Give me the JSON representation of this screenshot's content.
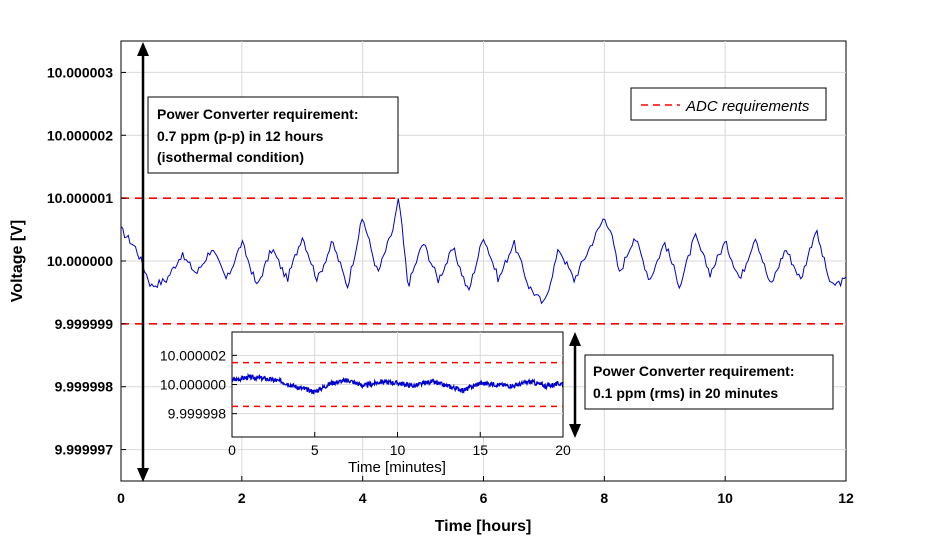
{
  "chart_data": [
    {
      "type": "line",
      "xlabel": "Time [hours]",
      "ylabel": "Voltage [V]",
      "xlim": [
        0,
        12
      ],
      "ylim": [
        9.9999965,
        10.0000035
      ],
      "x_ticks": [
        0,
        2,
        4,
        6,
        8,
        10,
        12
      ],
      "x_tick_labels": [
        "0",
        "2",
        "4",
        "6",
        "8",
        "10",
        "12"
      ],
      "y_ticks": [
        9.999997,
        9.999998,
        9.999999,
        10.0,
        10.000001,
        10.000002,
        10.000003
      ],
      "y_tick_labels": [
        "9.999997",
        "9.999998",
        "9.999999",
        "10.000000",
        "10.000001",
        "10.000002",
        "10.000003"
      ],
      "grid": true,
      "legend_position": "top-right",
      "series": [
        {
          "color": "#0000cc",
          "x": [
            0,
            0.25,
            0.5,
            0.75,
            1,
            1.25,
            1.5,
            1.75,
            2,
            2.25,
            2.5,
            2.75,
            3,
            3.25,
            3.5,
            3.75,
            4,
            4.25,
            4.5,
            4.6,
            4.75,
            5,
            5.25,
            5.5,
            5.75,
            6,
            6.25,
            6.5,
            6.75,
            7,
            7.25,
            7.5,
            7.75,
            8,
            8.1,
            8.25,
            8.5,
            8.75,
            9,
            9.25,
            9.5,
            9.75,
            10,
            10.25,
            10.5,
            10.75,
            11,
            11.25,
            11.5,
            11.75,
            12
          ],
          "values": [
            10.0000005,
            10.0000002,
            9.9999996,
            9.9999997,
            10.0000001,
            9.9999998,
            10.0000002,
            9.9999997,
            10.0000003,
            9.9999996,
            10.0000002,
            9.9999997,
            10.0000004,
            9.9999997,
            10.0000003,
            9.9999996,
            10.0000007,
            9.9999998,
            10.0000005,
            10.000001,
            9.9999996,
            10.0000003,
            9.9999997,
            10.0000002,
            9.9999995,
            10.0000004,
            9.9999997,
            10.0000003,
            9.9999996,
            9.9999993,
            10.0000002,
            9.9999997,
            10.0000002,
            10.0000007,
            10.0000005,
            9.9999998,
            10.0000004,
            9.9999997,
            10.0000003,
            9.9999996,
            10.0000004,
            9.9999998,
            10.0000003,
            9.9999997,
            10.0000004,
            9.9999996,
            10.0000002,
            9.9999997,
            10.0000005,
            9.9999996,
            9.9999997
          ]
        }
      ],
      "reference_lines": [
        {
          "name": "ADC requirements",
          "y": 10.000001,
          "color": "#ff0000",
          "style": "dashed"
        },
        {
          "name": "ADC requirements",
          "y": 9.999999,
          "color": "#ff0000",
          "style": "dashed"
        }
      ],
      "legend": [
        "ADC requirements"
      ],
      "annotations": {
        "box1_lines": [
          "Power Converter requirement:",
          "0.7 ppm (p-p) in 12 hours",
          "(isothermal condition)"
        ],
        "box2_lines": [
          "Power Converter requirement:",
          "0.1 ppm (rms) in 20 minutes"
        ]
      }
    },
    {
      "type": "line",
      "xlabel": "Time [minutes]",
      "xlim": [
        0,
        20
      ],
      "ylim": [
        9.9999964,
        10.0000036
      ],
      "x_ticks": [
        0,
        5,
        10,
        15,
        20
      ],
      "x_tick_labels": [
        "0",
        "5",
        "10",
        "15",
        "20"
      ],
      "y_ticks": [
        9.999998,
        10.0,
        10.000002
      ],
      "y_tick_labels": [
        "9.999998",
        "10.000000",
        "10.000002"
      ],
      "grid": true,
      "series": [
        {
          "color": "#0000cc",
          "x": [
            0,
            1,
            2,
            3,
            4,
            5,
            6,
            7,
            8,
            9,
            10,
            11,
            12,
            13,
            14,
            15,
            16,
            17,
            18,
            19,
            20
          ],
          "values": [
            10.0000003,
            10.0000005,
            10.0000004,
            10.0000002,
            9.9999998,
            9.9999995,
            10.0000001,
            10.0000003,
            9.9999999,
            10.0000002,
            10.0000001,
            9.9999999,
            10.0000002,
            9.9999999,
            9.9999996,
            10.0000001,
            10.0,
            9.9999999,
            10.0000002,
            9.9999999,
            10.0000001
          ]
        }
      ],
      "reference_lines": [
        {
          "y": 10.0000015,
          "color": "#ff0000",
          "style": "dashed"
        },
        {
          "y": 9.9999985,
          "color": "#ff0000",
          "style": "dashed"
        }
      ]
    }
  ]
}
